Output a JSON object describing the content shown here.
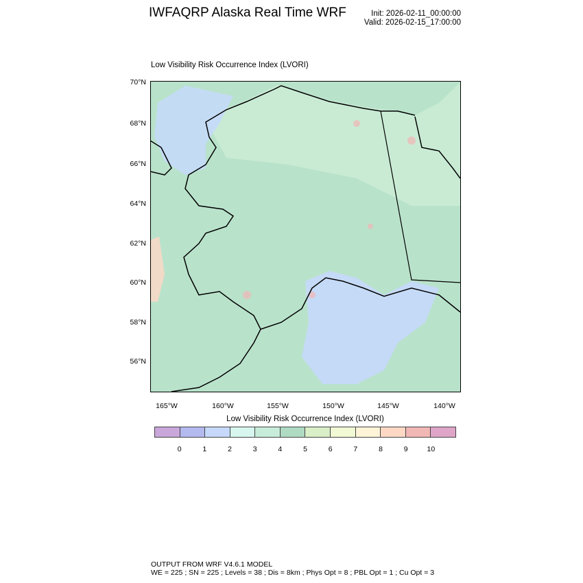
{
  "header": {
    "title": "IWFAQRP Alaska Real Time WRF",
    "init": "Init: 2026-02-11_00:00:00",
    "valid": "Valid: 2026-02-15_17:00:00"
  },
  "plot": {
    "subtitle": "Low Visibility Risk Occurrence Index   (LVORI)",
    "lat_labels": [
      "70°N",
      "68°N",
      "66°N",
      "64°N",
      "62°N",
      "60°N",
      "58°N",
      "56°N"
    ],
    "lon_labels": [
      "165°W",
      "160°W",
      "155°W",
      "150°W",
      "145°W",
      "140°W"
    ],
    "dominant_value_land": 4,
    "ocean_gulf_value": 2
  },
  "colorbar": {
    "title": "Low Visibility Risk Occurrence Index  (LVORI)",
    "labels": [
      "0",
      "1",
      "2",
      "3",
      "4",
      "5",
      "6",
      "7",
      "8",
      "9",
      "10"
    ],
    "colors": [
      "#c9a7da",
      "#b4b9ef",
      "#c6d9fb",
      "#d7f7ee",
      "#c7ecd9",
      "#afdbc3",
      "#d9efc7",
      "#f1f9d5",
      "#fff4d7",
      "#ffd8c5",
      "#f1b7b5",
      "#dea5c9"
    ]
  },
  "footer": {
    "line1": "OUTPUT FROM WRF V4.6.1 MODEL",
    "line2": "WE = 225 ; SN = 225 ; Levels = 38 ; Dis = 8km ; Phys Opt = 8 ; PBL Opt = 1 ; Cu Opt = 3"
  }
}
